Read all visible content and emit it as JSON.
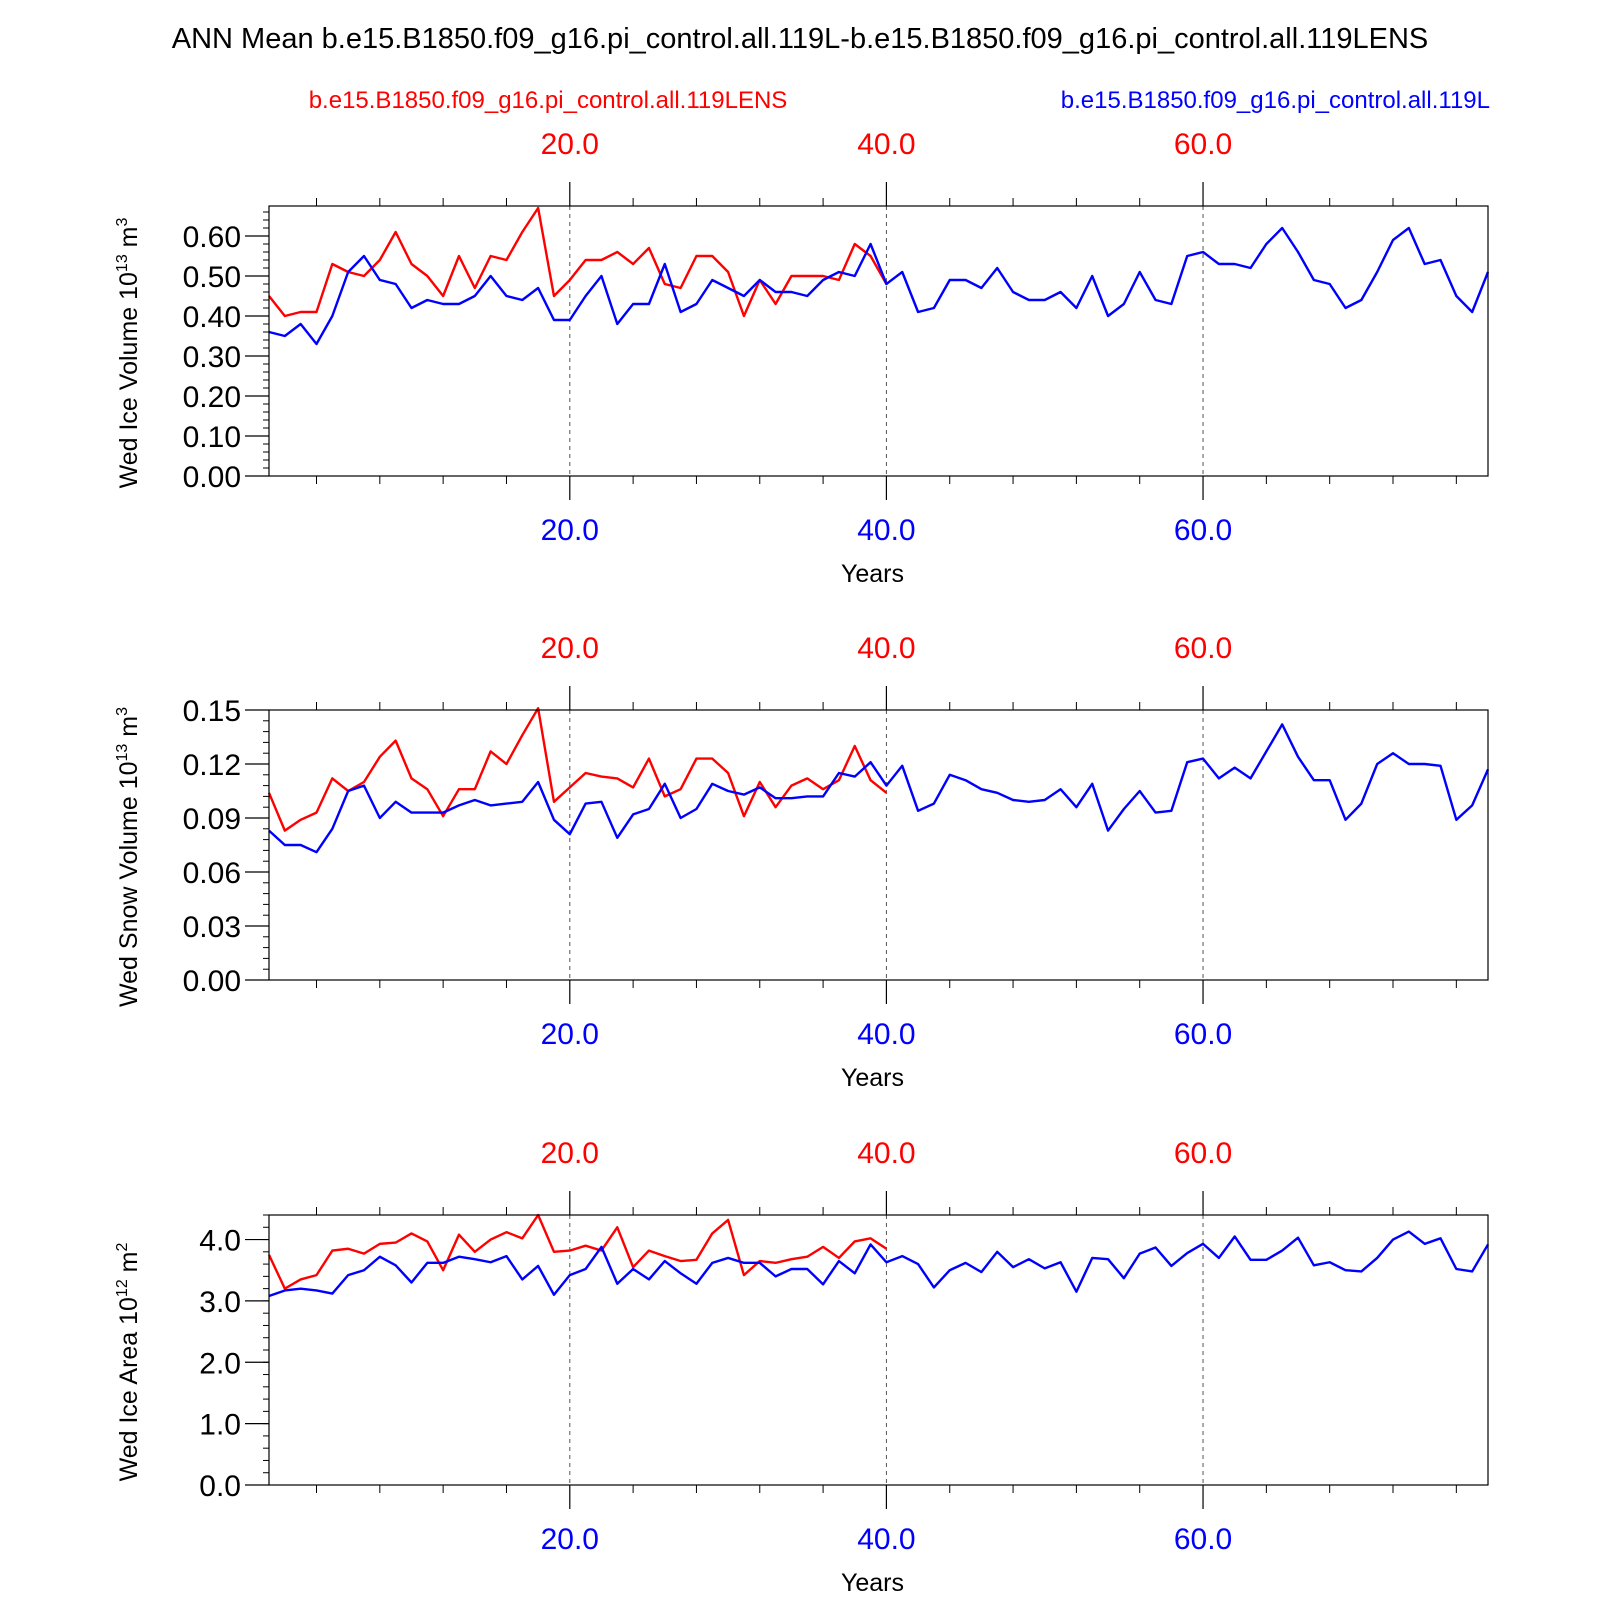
{
  "title": "ANN Mean b.e15.B1850.f09_g16.pi_control.all.119L-b.e15.B1850.f09_g16.pi_control.all.119LENS",
  "legend": {
    "red_name": "b.e15.B1850.f09_g16.pi_control.all.119LENS",
    "blue_name": "b.e15.B1850.f09_g16.pi_control.all.119L"
  },
  "colors": {
    "red": "#ff0000",
    "blue": "#0000ff",
    "axis": "#000000",
    "grid": "#555555"
  },
  "chart_data": [
    {
      "type": "line",
      "ylabel": "Wed Ice Volume 10",
      "ylabel_exp": "13",
      "ylabel_unit": "m",
      "ylabel_unit_exp": "3",
      "xlabel": "Years",
      "xlim": [
        1,
        78
      ],
      "ylim": [
        0,
        0.675
      ],
      "yticks": [
        0,
        0.1,
        0.2,
        0.3,
        0.4,
        0.5,
        0.6
      ],
      "ytick_labels": [
        "0.00",
        "0.10",
        "0.20",
        "0.30",
        "0.40",
        "0.50",
        "0.60"
      ],
      "yminor_step": 0.02,
      "xticks": [
        20,
        40,
        60
      ],
      "xtick_labels": [
        "20.0",
        "40.0",
        "60.0"
      ],
      "series": [
        {
          "name": "b.e15.B1850.f09_g16.pi_control.all.119LENS",
          "color": "#ff0000",
          "x_start": 1,
          "values": [
            0.45,
            0.4,
            0.41,
            0.41,
            0.53,
            0.51,
            0.5,
            0.54,
            0.61,
            0.53,
            0.5,
            0.45,
            0.55,
            0.47,
            0.55,
            0.54,
            0.61,
            0.67,
            0.45,
            0.49,
            0.54,
            0.54,
            0.56,
            0.53,
            0.57,
            0.48,
            0.47,
            0.55,
            0.55,
            0.51,
            0.4,
            0.49,
            0.43,
            0.5,
            0.5,
            0.5,
            0.49,
            0.58,
            0.55,
            0.48
          ]
        },
        {
          "name": "b.e15.B1850.f09_g16.pi_control.all.119L",
          "color": "#0000ff",
          "x_start": 1,
          "values": [
            0.36,
            0.35,
            0.38,
            0.33,
            0.4,
            0.51,
            0.55,
            0.49,
            0.48,
            0.42,
            0.44,
            0.43,
            0.43,
            0.45,
            0.5,
            0.45,
            0.44,
            0.47,
            0.39,
            0.39,
            0.45,
            0.5,
            0.38,
            0.43,
            0.43,
            0.53,
            0.41,
            0.43,
            0.49,
            0.47,
            0.45,
            0.49,
            0.46,
            0.46,
            0.45,
            0.49,
            0.51,
            0.5,
            0.58,
            0.48,
            0.51,
            0.41,
            0.42,
            0.49,
            0.49,
            0.47,
            0.52,
            0.46,
            0.44,
            0.44,
            0.46,
            0.42,
            0.5,
            0.4,
            0.43,
            0.51,
            0.44,
            0.43,
            0.55,
            0.56,
            0.53,
            0.53,
            0.52,
            0.58,
            0.62,
            0.56,
            0.49,
            0.48,
            0.42,
            0.44,
            0.51,
            0.59,
            0.62,
            0.53,
            0.54,
            0.45,
            0.41,
            0.51
          ]
        }
      ]
    },
    {
      "type": "line",
      "ylabel": "Wed Snow Volume 10",
      "ylabel_exp": "13",
      "ylabel_unit": "m",
      "ylabel_unit_exp": "3",
      "xlabel": "Years",
      "xlim": [
        1,
        78
      ],
      "ylim": [
        0,
        0.15
      ],
      "yticks": [
        0,
        0.03,
        0.06,
        0.09,
        0.12,
        0.15
      ],
      "ytick_labels": [
        "0.00",
        "0.03",
        "0.06",
        "0.09",
        "0.12",
        "0.15"
      ],
      "yminor_step": 0.006,
      "xticks": [
        20,
        40,
        60
      ],
      "xtick_labels": [
        "20.0",
        "40.0",
        "60.0"
      ],
      "series": [
        {
          "name": "b.e15.B1850.f09_g16.pi_control.all.119LENS",
          "color": "#ff0000",
          "x_start": 1,
          "values": [
            0.104,
            0.083,
            0.089,
            0.093,
            0.112,
            0.105,
            0.11,
            0.124,
            0.133,
            0.112,
            0.106,
            0.091,
            0.106,
            0.106,
            0.127,
            0.12,
            0.136,
            0.151,
            0.099,
            0.107,
            0.115,
            0.113,
            0.112,
            0.107,
            0.123,
            0.102,
            0.106,
            0.123,
            0.123,
            0.115,
            0.091,
            0.11,
            0.096,
            0.108,
            0.112,
            0.106,
            0.111,
            0.13,
            0.111,
            0.104
          ]
        },
        {
          "name": "b.e15.B1850.f09_g16.pi_control.all.119L",
          "color": "#0000ff",
          "x_start": 1,
          "values": [
            0.083,
            0.075,
            0.075,
            0.071,
            0.084,
            0.105,
            0.108,
            0.09,
            0.099,
            0.093,
            0.093,
            0.093,
            0.097,
            0.1,
            0.097,
            0.098,
            0.099,
            0.11,
            0.089,
            0.081,
            0.098,
            0.099,
            0.079,
            0.092,
            0.095,
            0.109,
            0.09,
            0.095,
            0.109,
            0.105,
            0.103,
            0.107,
            0.101,
            0.101,
            0.102,
            0.102,
            0.115,
            0.113,
            0.121,
            0.108,
            0.119,
            0.094,
            0.098,
            0.114,
            0.111,
            0.106,
            0.104,
            0.1,
            0.099,
            0.1,
            0.106,
            0.096,
            0.109,
            0.083,
            0.095,
            0.105,
            0.093,
            0.094,
            0.121,
            0.123,
            0.112,
            0.118,
            0.112,
            0.127,
            0.142,
            0.124,
            0.111,
            0.111,
            0.089,
            0.098,
            0.12,
            0.126,
            0.12,
            0.12,
            0.119,
            0.089,
            0.097,
            0.117
          ]
        }
      ]
    },
    {
      "type": "line",
      "ylabel": "Wed Ice Area 10",
      "ylabel_exp": "12",
      "ylabel_unit": "m",
      "ylabel_unit_exp": "2",
      "xlabel": "Years",
      "xlim": [
        1,
        78
      ],
      "ylim": [
        0,
        4.4
      ],
      "yticks": [
        0,
        1,
        2,
        3,
        4
      ],
      "ytick_labels": [
        "0.0",
        "1.0",
        "2.0",
        "3.0",
        "4.0"
      ],
      "yminor_step": 0.2,
      "xticks": [
        20,
        40,
        60
      ],
      "xtick_labels": [
        "20.0",
        "40.0",
        "60.0"
      ],
      "series": [
        {
          "name": "b.e15.B1850.f09_g16.pi_control.all.119LENS",
          "color": "#ff0000",
          "x_start": 1,
          "values": [
            3.75,
            3.2,
            3.35,
            3.42,
            3.82,
            3.85,
            3.77,
            3.93,
            3.95,
            4.1,
            3.97,
            3.5,
            4.08,
            3.8,
            4.0,
            4.12,
            4.02,
            4.4,
            3.8,
            3.82,
            3.9,
            3.82,
            4.2,
            3.55,
            3.82,
            3.73,
            3.65,
            3.67,
            4.1,
            4.32,
            3.42,
            3.65,
            3.62,
            3.68,
            3.72,
            3.88,
            3.7,
            3.97,
            4.02,
            3.85
          ]
        },
        {
          "name": "b.e15.B1850.f09_g16.pi_control.all.119L",
          "color": "#0000ff",
          "x_start": 1,
          "values": [
            3.08,
            3.17,
            3.2,
            3.17,
            3.12,
            3.42,
            3.5,
            3.72,
            3.58,
            3.3,
            3.62,
            3.62,
            3.72,
            3.68,
            3.63,
            3.73,
            3.35,
            3.57,
            3.1,
            3.42,
            3.52,
            3.88,
            3.28,
            3.52,
            3.35,
            3.65,
            3.45,
            3.28,
            3.62,
            3.7,
            3.62,
            3.62,
            3.4,
            3.52,
            3.52,
            3.27,
            3.65,
            3.45,
            3.92,
            3.63,
            3.73,
            3.6,
            3.22,
            3.5,
            3.62,
            3.47,
            3.8,
            3.55,
            3.68,
            3.53,
            3.63,
            3.15,
            3.7,
            3.68,
            3.37,
            3.77,
            3.87,
            3.57,
            3.78,
            3.93,
            3.7,
            4.05,
            3.67,
            3.67,
            3.82,
            4.03,
            3.58,
            3.63,
            3.5,
            3.48,
            3.7,
            4.0,
            4.13,
            3.93,
            4.02,
            3.52,
            3.48,
            3.92
          ]
        }
      ]
    }
  ]
}
